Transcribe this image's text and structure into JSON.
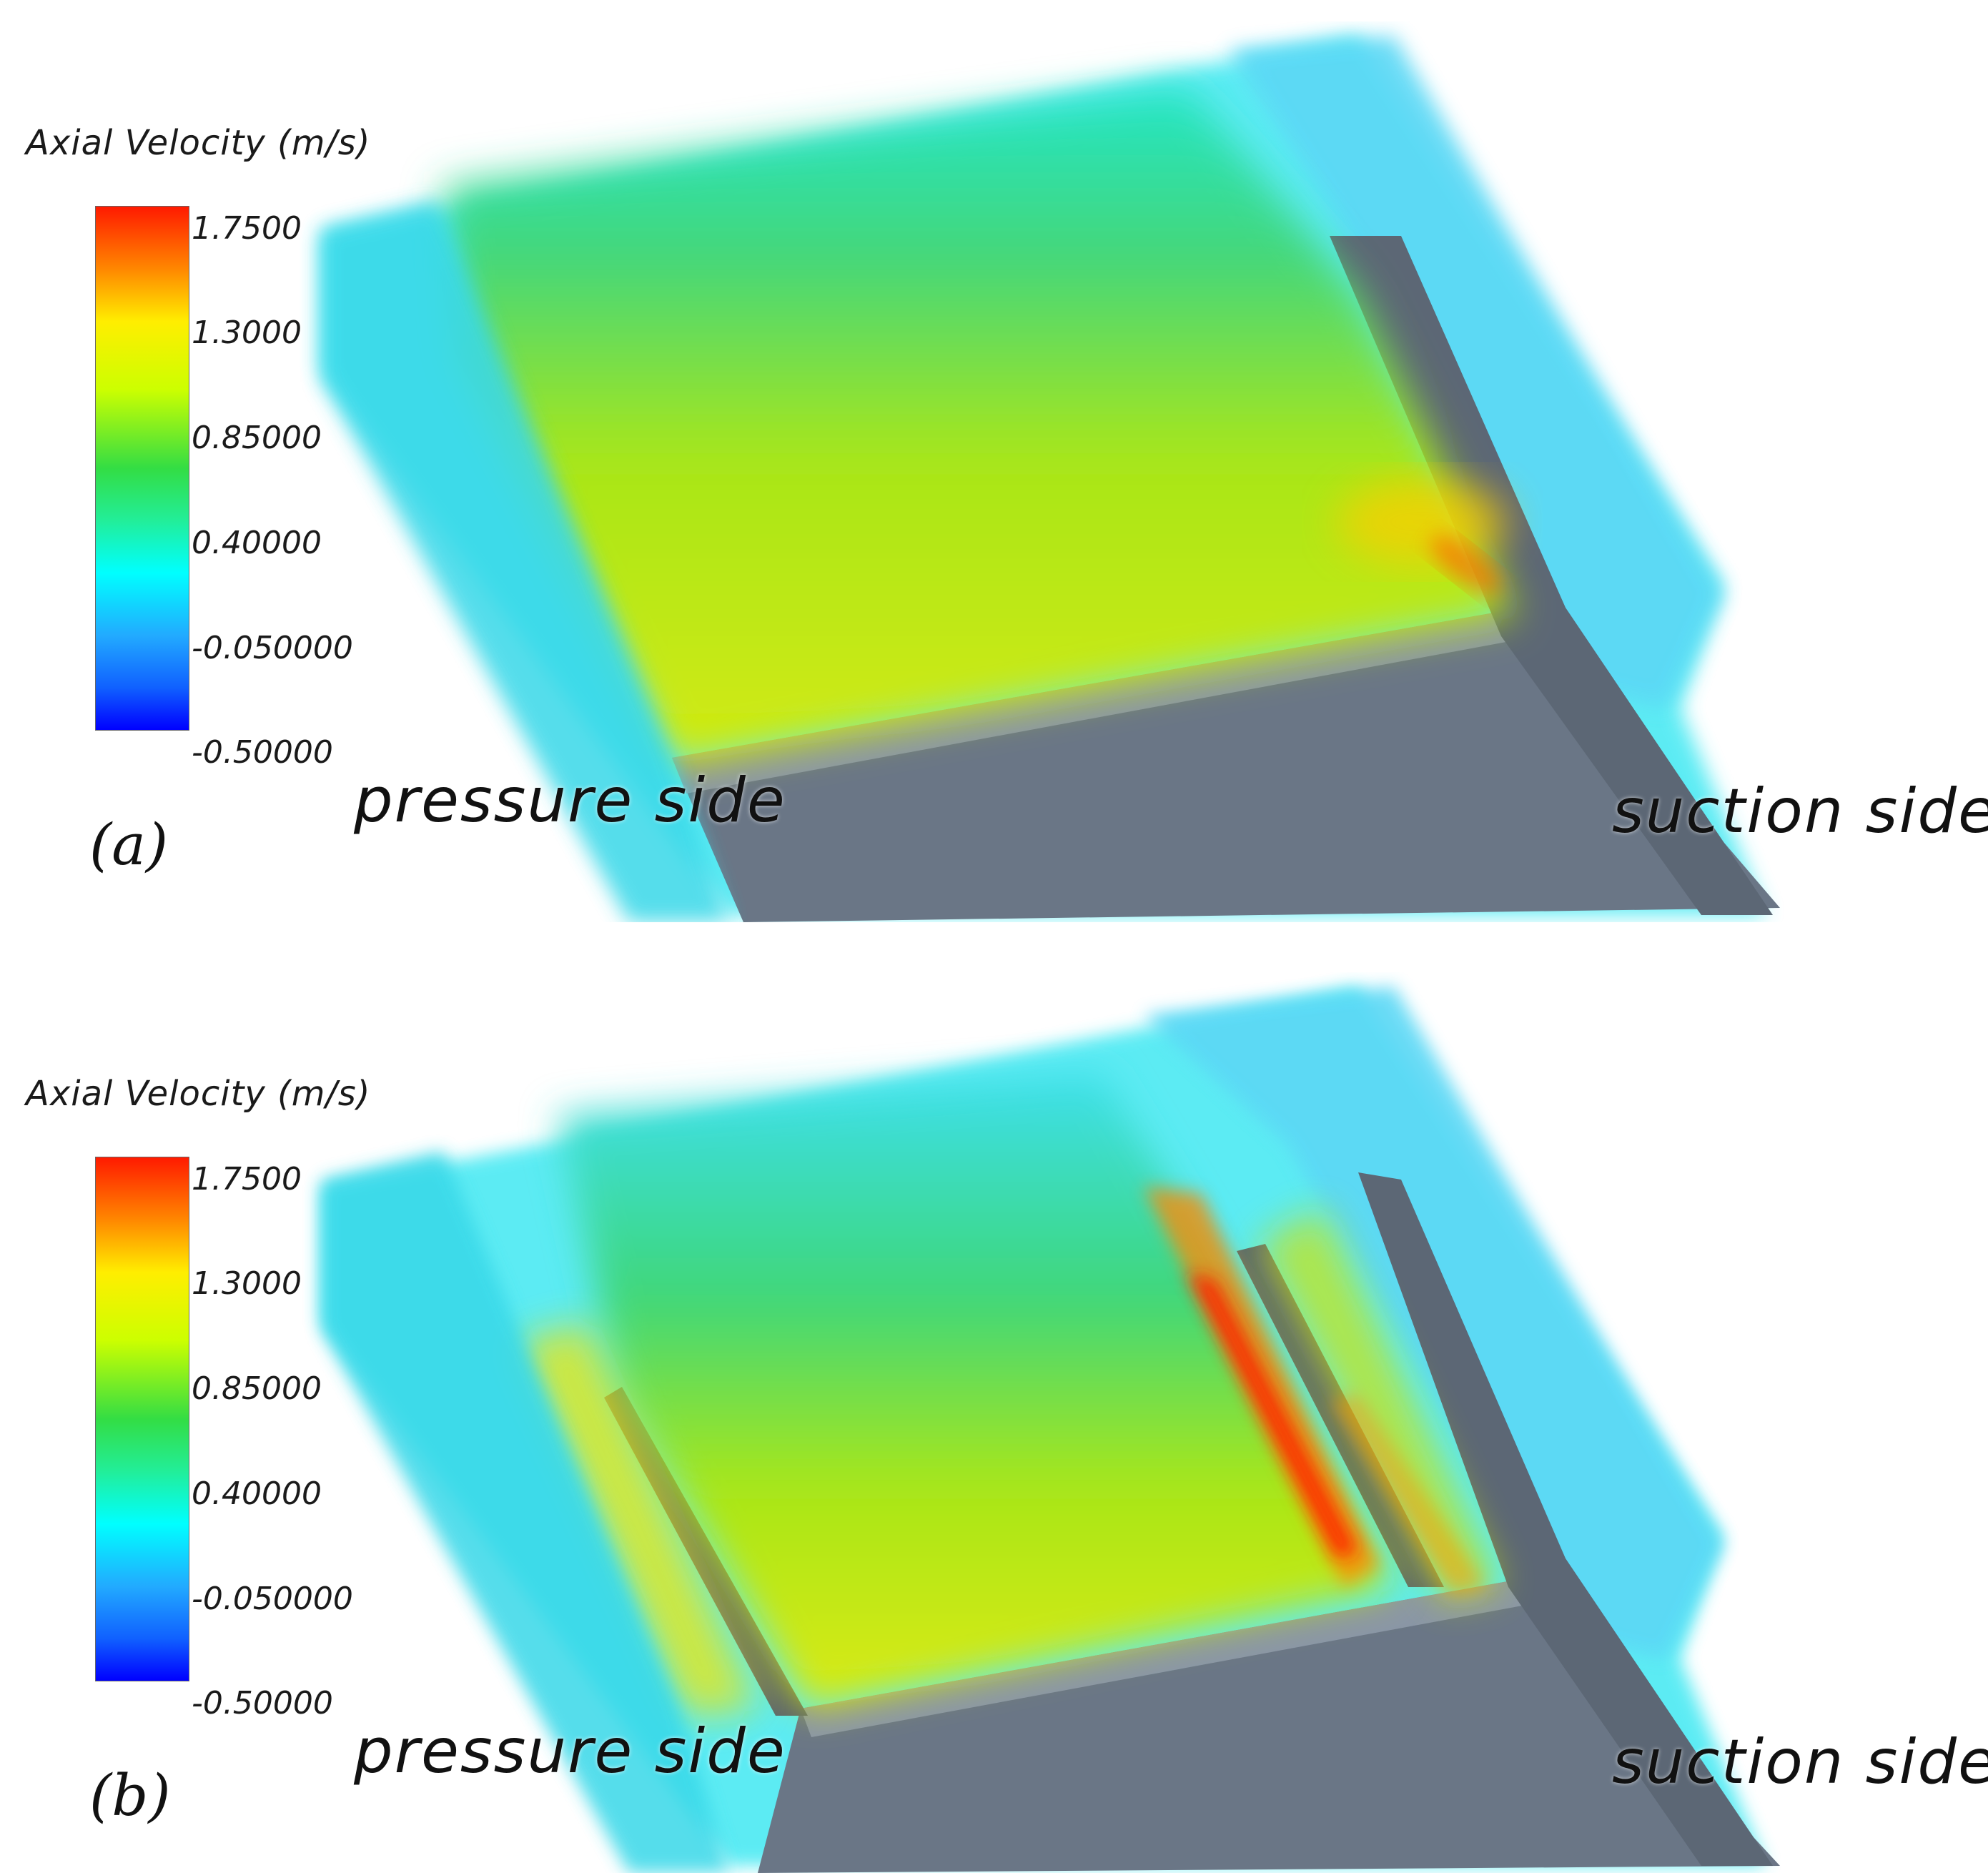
{
  "colorbar": {
    "title": "Axial Velocity (m/s)",
    "ticks": [
      "1.7500",
      "1.3000",
      "0.85000",
      "0.40000",
      "-0.050000",
      "-0.50000"
    ],
    "range": [
      -0.5,
      1.75
    ],
    "colormap": [
      "#0000ff",
      "#1e90ff",
      "#00ffff",
      "#33dd55",
      "#ccff00",
      "#ffee00",
      "#ff9900",
      "#ff2200"
    ]
  },
  "panels": [
    {
      "letter": "(a)",
      "pressure_label": "pressure side",
      "suction_label": "suction side"
    },
    {
      "letter": "(b)",
      "pressure_label": "pressure side",
      "suction_label": "suction side"
    }
  ]
}
